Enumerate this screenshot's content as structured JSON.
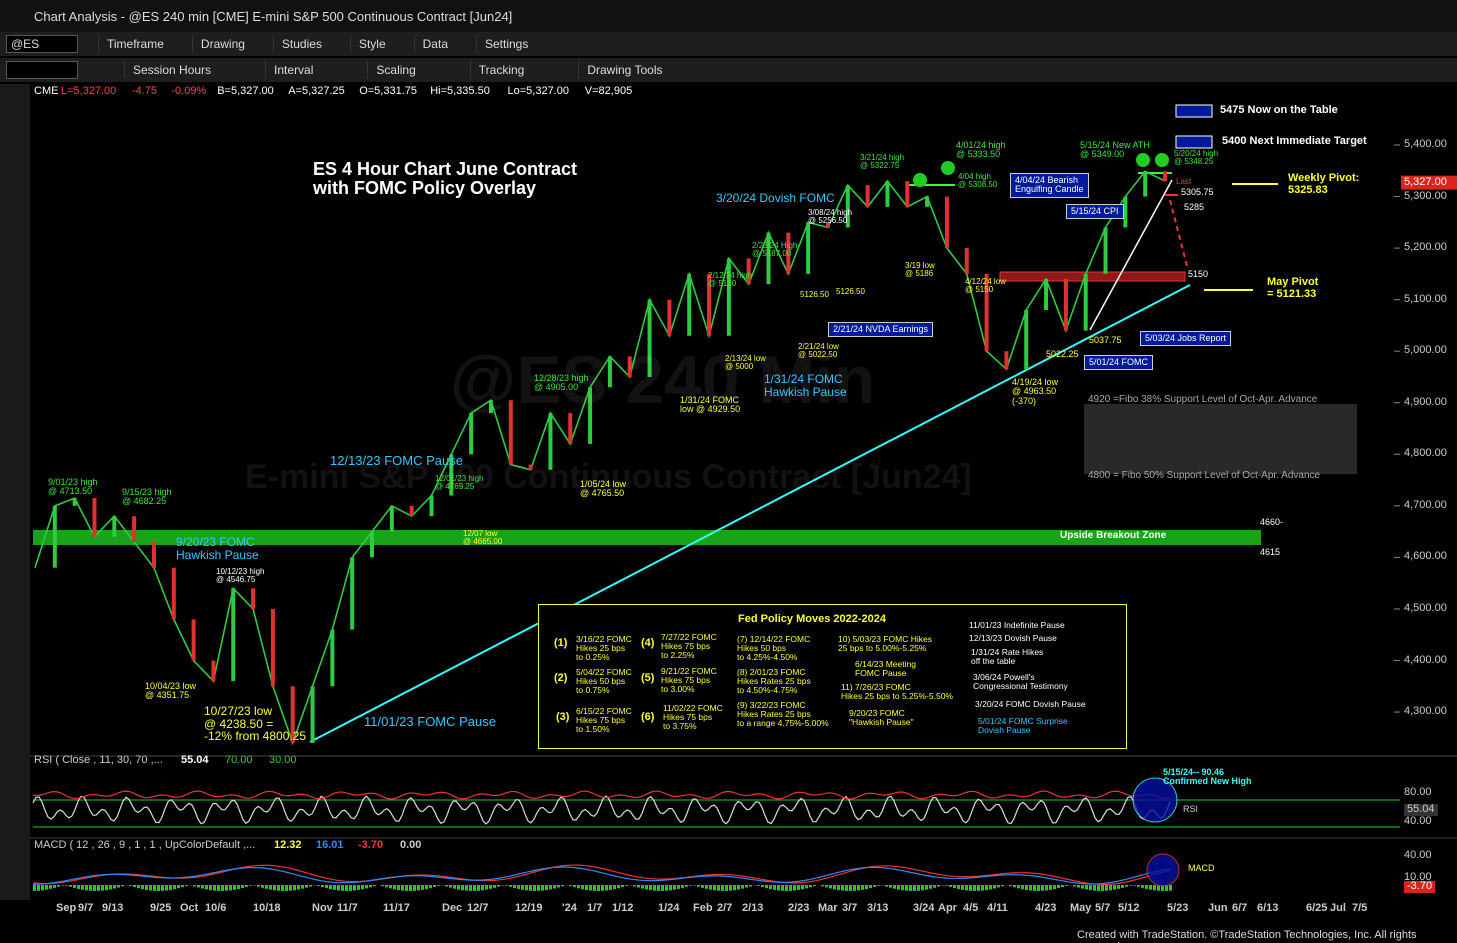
{
  "window": {
    "title": "Chart Analysis - @ES 240 min [CME] E-mini S&P 500 Continuous Contract [Jun24]"
  },
  "toolbar": {
    "symbol": "@ES",
    "row1": [
      "Timeframe",
      "Drawing",
      "Studies",
      "Style",
      "Data",
      "Settings"
    ],
    "row2": [
      "Session Hours",
      "Interval",
      "Scaling",
      "Tracking",
      "Drawing Tools"
    ]
  },
  "status": [
    "CME",
    "L=5,327.00",
    "-4.75",
    "-0.09%",
    "B=5,327.00",
    "A=5,327.25",
    "O=5,331.75",
    "Hi=5,335.50",
    "Lo=5,327.00",
    "V=82,905"
  ],
  "watermark": [
    "@ES 240 Min",
    "E-mini S&P 500 Continuous Contract [Jun24]"
  ],
  "chart": {
    "title": "ES 4 Hour Chart June Contract\nwith FOMC Policy Overlay",
    "price_ticks": [
      {
        "value": 5400,
        "label": "5,400.00"
      },
      {
        "value": 5300,
        "label": "5,300.00"
      },
      {
        "value": 5200,
        "label": "5,200.00"
      },
      {
        "value": 5100,
        "label": "5,100.00"
      },
      {
        "value": 5000,
        "label": "5,000.00"
      },
      {
        "value": 4900,
        "label": "4,900.00"
      },
      {
        "value": 4800,
        "label": "4,800.00"
      },
      {
        "value": 4700,
        "label": "4,700.00"
      },
      {
        "value": 4600,
        "label": "4,600.00"
      },
      {
        "value": 4500,
        "label": "4,500.00"
      },
      {
        "value": 4400,
        "label": "4,400.00"
      },
      {
        "value": 4300,
        "label": "4,300.00"
      }
    ],
    "last_price": {
      "value": 5327,
      "label": "5,327.00"
    },
    "price_path": [
      4580,
      4700,
      4715,
      4640,
      4680,
      4630,
      4580,
      4480,
      4400,
      4360,
      4540,
      4500,
      4350,
      4240,
      4350,
      4460,
      4600,
      4650,
      4700,
      4680,
      4720,
      4800,
      4880,
      4905,
      4780,
      4770,
      4880,
      4820,
      4930,
      4990,
      4950,
      5100,
      5030,
      5150,
      5030,
      5180,
      5130,
      5230,
      5150,
      5250,
      5240,
      5322,
      5280,
      5330,
      5280,
      5300,
      5200,
      5150,
      5000,
      4965,
      5080,
      5140,
      5040,
      5150,
      5240,
      5300,
      5349,
      5330
    ],
    "annotations": [
      "9/01/23 high\n@ 4713.50",
      "9/15/23 high\n@ 4682.25",
      "9/20/23 FOMC\nHawkish Pause",
      "10/12/23 high\n@ 4546.75",
      "10/04/23 low\n@ 4351.75",
      "10/27/23 low\n@ 4238.50 =\n-12% from 4800.25",
      "11/01/23 FOMC Pause",
      "12/13/23 FOMC Pause",
      "12/01/23 high\n@ 4769.25",
      "12/07 low\n@ 4665.00",
      "12/28/23 high\n@ 4905.00",
      "1/05/24 low\n@ 4765.50",
      "1/31/24 FOMC\nlow @ 4929.50",
      "1/31/24 FOMC\nHawkish Pause",
      "2/13/24 low\n@ 5000",
      "2/12/24 high\n@ 5130",
      "2/23/24 High\n@ 5187.00",
      "2/21/24 low\n@ 5022.50",
      "5126.50",
      "5126.50",
      "3/20/24 Dovish FOMC",
      "3/08/24 high\n@ 5256.50",
      "3/21/24 high\n@ 5322.75",
      "3/19 low\n@ 5186",
      "4/01/24 high\n@ 5333.50",
      "4/04 high\n@ 5308.50",
      "4/12/24 low\n@ 5150",
      "4/19/24 low\n@ 4963.50\n(-370)",
      "5022.25",
      "5037.75",
      "5/15/24 New ATH\n@ 5349.00",
      "5/20/24 high\n@ 5348.25",
      "5305.75",
      "5285",
      "5150",
      "Last",
      "Weekly Pivot:\n5325.83",
      "May Pivot\n= 5121.33",
      "4920 =Fibo 38% Support Level of Oct-Apr. Advance",
      "4800 = Fibo 50% Support Level of Oct-Apr. Advance",
      "Upside Breakout Zone",
      "4660-",
      "4615",
      "5475 Now on the Table",
      "5400 Next Immediate Target"
    ],
    "boxed": [
      "2/21/24 NVDA Earnings",
      "4/04/24 Bearish\nEngulfing Candle",
      "5/15/24 CPI",
      "5/03/24 Jobs Report",
      "5/01/24 FOMC"
    ],
    "fed_box": {
      "title": "Fed Policy Moves 2022-2024",
      "items": [
        "(1)",
        "3/16/22 FOMC\nHikes 25 bps\nto 0.25%",
        "(2)",
        "5/04/22 FOMC\nHikes 50 bps\nto 0.75%",
        "(3)",
        "6/15/22 FOMC\nHikes 75 bps\nto 1.50%",
        "(4)",
        "7/27/22 FOMC\nHikes 75 bps\nto 2.25%",
        "(5)",
        "9/21/22 FOMC\nHikes 75 bps\nto 3.00%",
        "(6)",
        "11/02/22 FOMC\nHikes 75 bps\nto 3.75%",
        "(7) 12/14/22 FOMC\nHikes 50 bps\nto 4.25%-4.50%",
        "(8) 2/01/23 FOMC\nHikes Rates 25 bps\nto 4.50%-4.75%",
        "(9) 3/22/23 FOMC\nHikes Rates 25 bps\nto a range 4.75%-5.00%",
        "10) 5/03/23 FOMC Hikes\n25 bps to 5.00%-5.25%",
        "6/14/23 Meeting\nFOMC Pause",
        "11) 7/26/23 FOMC\nHikes 25 bps to 5.25%-5.50%",
        "9/20/23 FOMC\n\"Hawkish Pause\"",
        "11/01/23 Indefinite Pause",
        "12/13/23 Dovish Pause",
        "1/31/24 Rate Hikes\noff the table",
        "3/06/24 Powell's\nCongressional Testimony",
        "3/20/24 FOMC Dovish Pause",
        "5/01/24 FOMC Surprise\nDovish Pause"
      ]
    }
  },
  "rsi": {
    "header": [
      "RSI ( Close , 11, 30, 70 ,...",
      "55.04",
      "70.00",
      "30.00"
    ],
    "note": "5/15/24-- 90.46\nConfirmed New High",
    "label": "RSI",
    "axis": [
      "80.00",
      "40.00",
      "55.04"
    ]
  },
  "macd": {
    "header": [
      "MACD ( 12 , 26 , 9 , 1 , 1 , UpColorDefault ,...",
      "12.32",
      "16.01",
      "-3.70",
      "0.00"
    ],
    "label": "MACD",
    "axis": [
      "40.00",
      "10.00",
      "-3.70"
    ]
  },
  "date_axis": [
    "Sep",
    "9/7",
    "9/13",
    "9/25",
    "Oct",
    "10/6",
    "10/18",
    "Nov",
    "11/7",
    "11/17",
    "Dec",
    "12/7",
    "12/19",
    "'24",
    "1/7",
    "1/12",
    "1/24",
    "Feb",
    "2/7",
    "2/13",
    "2/23",
    "Mar",
    "3/7",
    "3/13",
    "3/24",
    "Apr",
    "4/5",
    "4/11",
    "4/23",
    "May",
    "5/7",
    "5/12",
    "5/23",
    "Jun",
    "6/7",
    "6/13",
    "6/25",
    "Jul",
    "7/5"
  ],
  "footer": "Created with TradeStation. ©TradeStation Technologies, Inc. All rights reserved."
}
